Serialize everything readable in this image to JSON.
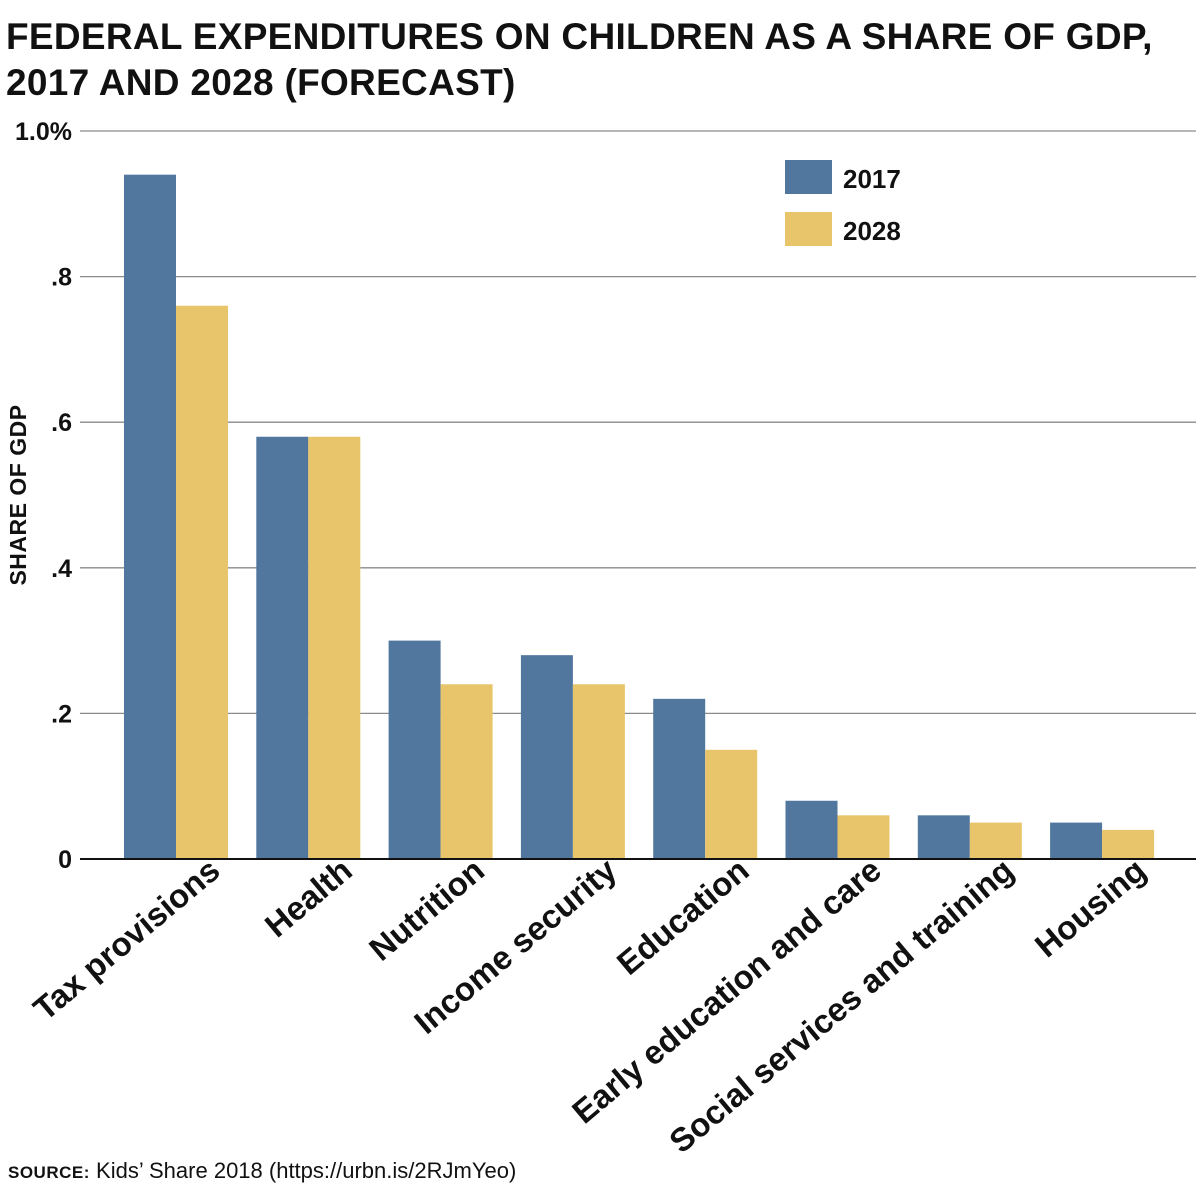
{
  "title": {
    "line1": "FEDERAL EXPENDITURES ON CHILDREN AS A SHARE OF GDP,",
    "line2": "2017 AND 2028 (FORECAST)"
  },
  "source": {
    "label": "SOURCE:",
    "text": "Kids’ Share 2018 (https://urbn.is/2RJmYeo)"
  },
  "colors": {
    "series_2017": "#52779e",
    "series_2028": "#e8c56a",
    "grid": "#8a8a8a",
    "axis": "#111111"
  },
  "chart_data": {
    "type": "bar",
    "ylabel": "SHARE OF GDP",
    "xlabel": "",
    "ylim": [
      0,
      1.0
    ],
    "yticks": [
      0,
      0.2,
      0.4,
      0.6,
      0.8,
      1.0
    ],
    "ytick_labels": [
      "0",
      ".2",
      ".4",
      ".6",
      ".8",
      "1.0%"
    ],
    "grid": true,
    "legend_position": "top-right",
    "categories": [
      "Tax provisions",
      "Health",
      "Nutrition",
      "Income security",
      "Education",
      "Early education and care",
      "Social services and training",
      "Housing"
    ],
    "series": [
      {
        "name": "2017",
        "values": [
          0.94,
          0.58,
          0.3,
          0.28,
          0.22,
          0.08,
          0.06,
          0.05
        ]
      },
      {
        "name": "2028",
        "values": [
          0.76,
          0.58,
          0.24,
          0.24,
          0.15,
          0.06,
          0.05,
          0.04
        ]
      }
    ]
  }
}
